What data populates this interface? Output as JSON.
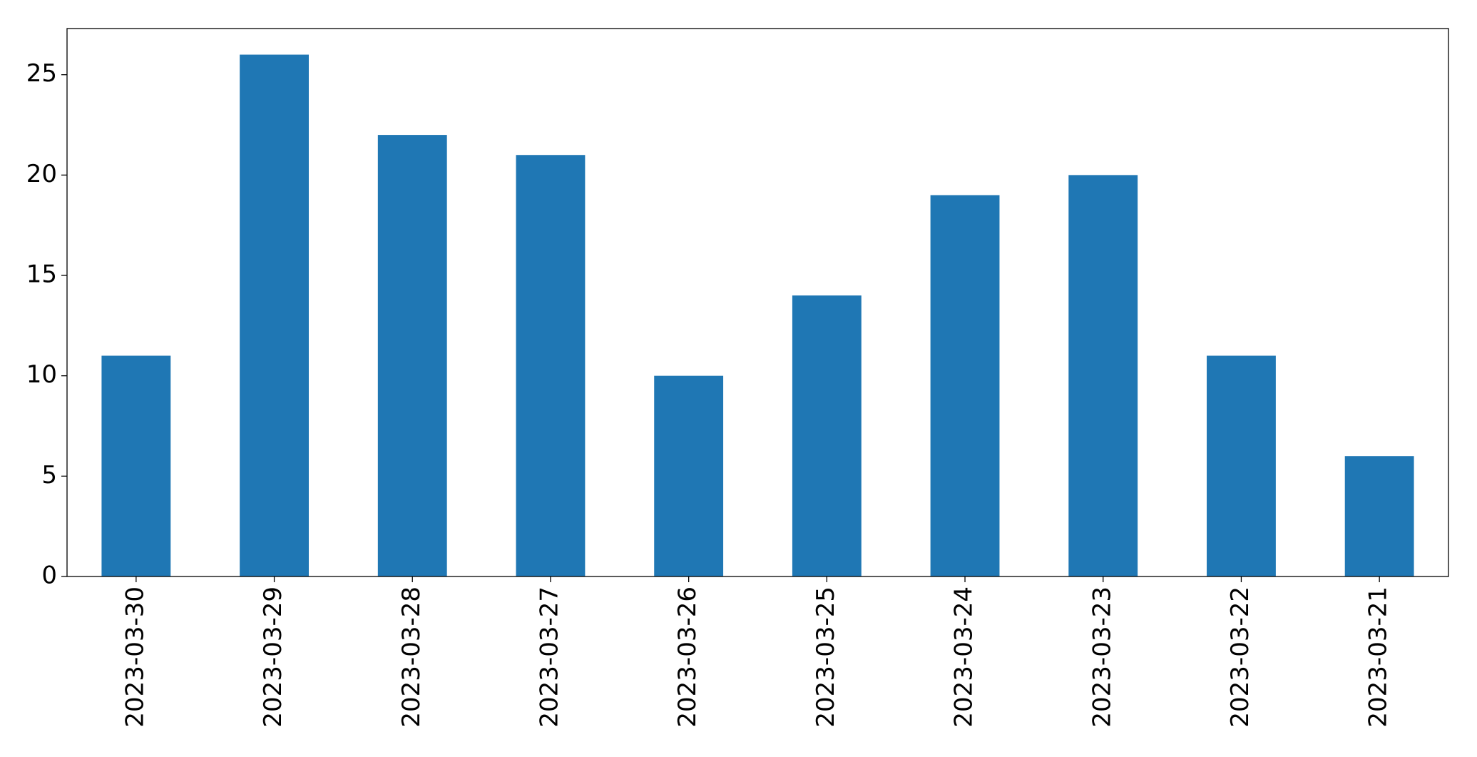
{
  "chart_data": {
    "type": "bar",
    "categories": [
      "2023-03-30",
      "2023-03-29",
      "2023-03-28",
      "2023-03-27",
      "2023-03-26",
      "2023-03-25",
      "2023-03-24",
      "2023-03-23",
      "2023-03-22",
      "2023-03-21"
    ],
    "values": [
      11,
      26,
      22,
      21,
      10,
      14,
      19,
      20,
      11,
      6
    ],
    "color": "#1f77b4",
    "ylim": [
      0,
      27.3
    ],
    "yticks": [
      0,
      5,
      10,
      15,
      20,
      25
    ],
    "grid": false
  }
}
